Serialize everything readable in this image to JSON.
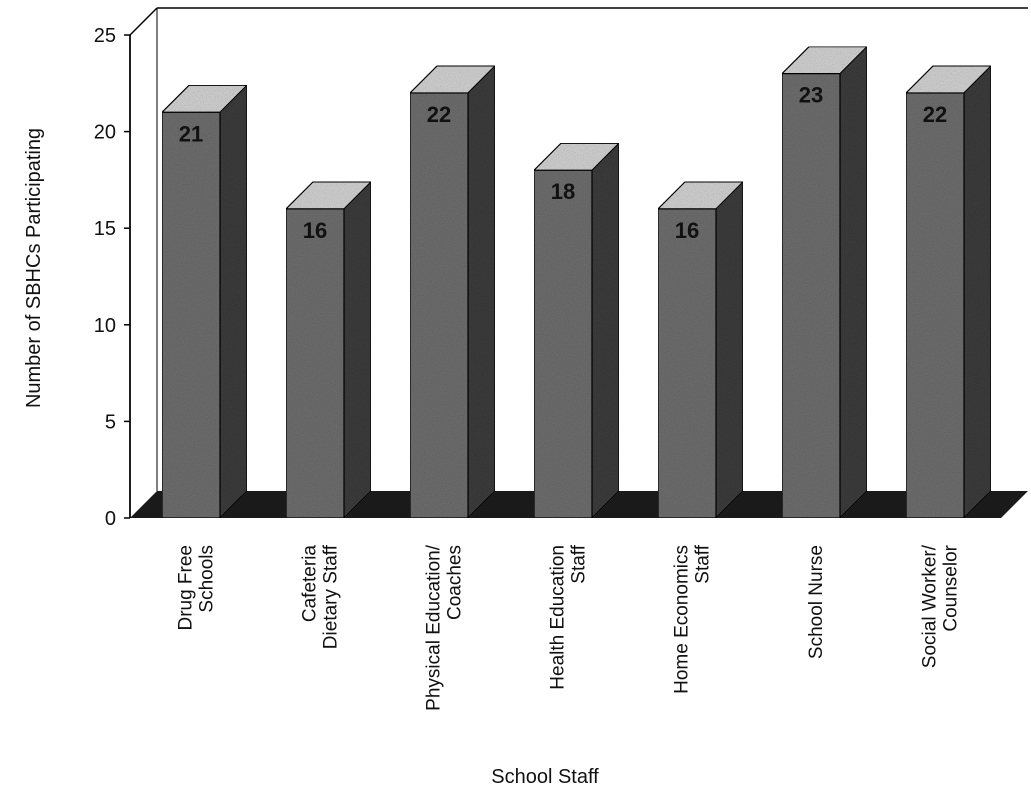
{
  "chart_data": {
    "type": "bar",
    "title": "",
    "xlabel": "School Staff",
    "ylabel": "Number of SBHCs Participating",
    "ylim": [
      0,
      25
    ],
    "yticks": [
      0,
      5,
      10,
      15,
      20,
      25
    ],
    "categories": [
      [
        "Drug Free",
        "Schools"
      ],
      [
        "Cafeteria",
        "Dietary Staff"
      ],
      [
        "Physical  Education/",
        "Coaches"
      ],
      [
        "Health  Education",
        "Staff"
      ],
      [
        "Home  Economics",
        "Staff"
      ],
      [
        "School Nurse"
      ],
      [
        "Social Worker/",
        "Counselor"
      ]
    ],
    "values": [
      21,
      16,
      22,
      18,
      16,
      23,
      22
    ],
    "data_labels": [
      "21",
      "16",
      "22",
      "18",
      "16",
      "23",
      "22"
    ],
    "style": "3d-bars",
    "grid": false,
    "colors": {
      "bar_front": "#6e6e6e",
      "bar_side": "#3c3c3c",
      "bar_top": "#d2d2d2",
      "floor": "#1a1a1a",
      "axis": "#000000"
    }
  }
}
